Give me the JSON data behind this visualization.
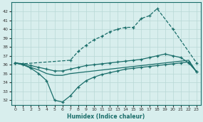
{
  "xlabel": "Humidex (Indice chaleur)",
  "x_top": [
    0,
    1,
    7,
    8,
    9,
    10,
    11,
    12,
    13,
    14,
    15,
    16,
    17,
    18,
    20,
    23
  ],
  "y_top": [
    36.2,
    36.1,
    36.5,
    37.5,
    38.2,
    38.8,
    39.2,
    39.7,
    40.0,
    40.2,
    40.2,
    41.2,
    41.5,
    42.3,
    40.0,
    36.2
  ],
  "x_mid": [
    0,
    1,
    2,
    3,
    4,
    5,
    6,
    7,
    8,
    9,
    10,
    11,
    12,
    13,
    14,
    15,
    16,
    17,
    18,
    19,
    20,
    21,
    22,
    23
  ],
  "y_mid": [
    36.2,
    36.1,
    35.9,
    35.7,
    35.5,
    35.3,
    35.3,
    35.5,
    35.7,
    35.9,
    36.0,
    36.1,
    36.2,
    36.3,
    36.4,
    36.5,
    36.6,
    36.8,
    37.0,
    37.2,
    37.0,
    36.8,
    36.2,
    35.2
  ],
  "x_bot": [
    0,
    1,
    2,
    3,
    4,
    5,
    6,
    7,
    8,
    9,
    10,
    11,
    12,
    13,
    14,
    15,
    16,
    17,
    18,
    19,
    20,
    21,
    22,
    23
  ],
  "y_bot": [
    36.2,
    36.0,
    35.6,
    35.0,
    34.2,
    32.0,
    31.8,
    32.5,
    33.5,
    34.2,
    34.6,
    34.9,
    35.1,
    35.3,
    35.5,
    35.6,
    35.7,
    35.8,
    35.9,
    36.0,
    36.1,
    36.2,
    36.3,
    35.2
  ],
  "x_low": [
    0,
    1,
    2,
    3,
    4,
    5,
    6,
    7,
    8,
    9,
    10,
    11,
    12,
    13,
    14,
    15,
    16,
    17,
    18,
    19,
    20,
    21,
    22,
    23
  ],
  "y_low": [
    36.2,
    36.0,
    35.7,
    35.4,
    35.0,
    34.8,
    34.8,
    35.0,
    35.1,
    35.2,
    35.3,
    35.4,
    35.5,
    35.6,
    35.7,
    35.8,
    35.9,
    36.0,
    36.1,
    36.2,
    36.3,
    36.4,
    36.5,
    35.2
  ],
  "ylim": [
    31.5,
    43
  ],
  "xlim": [
    -0.5,
    23.5
  ],
  "yticks": [
    32,
    33,
    34,
    35,
    36,
    37,
    38,
    39,
    40,
    41,
    42
  ],
  "xticks": [
    0,
    1,
    2,
    3,
    4,
    5,
    6,
    7,
    8,
    9,
    10,
    11,
    12,
    13,
    14,
    15,
    16,
    17,
    18,
    19,
    20,
    21,
    22,
    23
  ],
  "line_color": "#1a6e6a",
  "bg_color": "#d8eeed",
  "grid_color": "#b8d8d5"
}
